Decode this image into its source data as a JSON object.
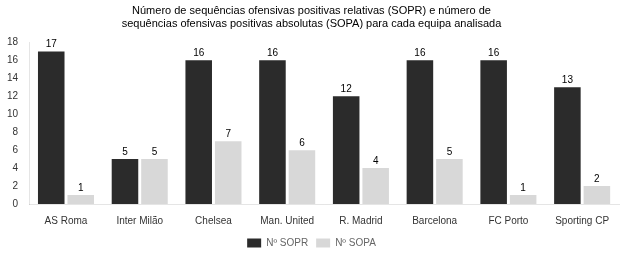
{
  "chart_data": {
    "type": "bar",
    "title": "Número de sequências ofensivas positivas relativas (SOPR) e número de\nsequências ofensivas positivas absolutas (SOPA) para cada equipa analisada",
    "categories": [
      "AS Roma",
      "Inter Milão",
      "Chelsea",
      "Man. United",
      "R. Madrid",
      "Barcelona",
      "FC Porto",
      "Sporting CP"
    ],
    "series": [
      {
        "name": "Nº SOPR",
        "color": "#2b2b2b",
        "values": [
          17,
          5,
          16,
          16,
          12,
          16,
          16,
          13
        ]
      },
      {
        "name": "Nº SOPA",
        "color": "#d8d8d8",
        "values": [
          1,
          5,
          7,
          6,
          4,
          5,
          1,
          2
        ]
      }
    ],
    "ylim": [
      0,
      18
    ],
    "yticks": [
      0,
      2,
      4,
      6,
      8,
      10,
      12,
      14,
      16,
      18
    ],
    "grid": false,
    "legend": "bottom",
    "data_labels": true
  }
}
